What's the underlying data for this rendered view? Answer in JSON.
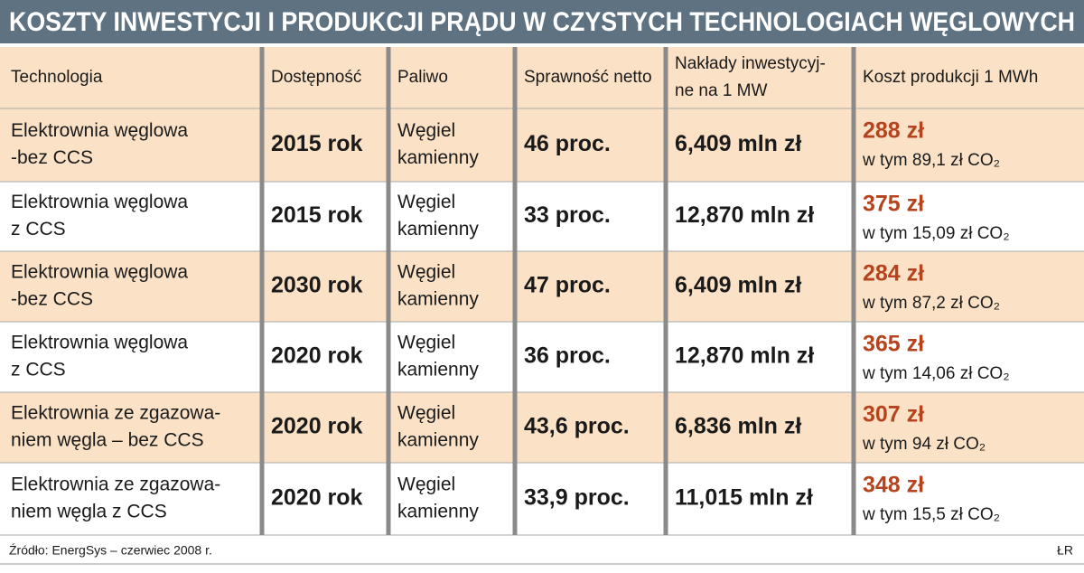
{
  "title": "KOSZTY INWESTYCJI I PRODUKCJI PRĄDU W CZYSTYCH TECHNOLOGIACH WĘGLOWYCH",
  "table": {
    "header": [
      "Technologia",
      "Dostępność",
      "Paliwo",
      "Sprawność netto",
      [
        "Nakłady inwestycyj-",
        "ne na 1 MW"
      ],
      "Koszt produkcji 1 MWh"
    ],
    "rows": [
      [
        [
          "Elektrownia węglowa",
          "-bez CCS"
        ],
        "2015 rok",
        [
          "Węgiel",
          "kamienny"
        ],
        "46 proc.",
        "6,409 mln zł",
        {
          "cost": "288 zł",
          "detail": "w tym 89,1 zł CO₂"
        }
      ],
      [
        [
          "Elektrownia węglowa",
          "z CCS"
        ],
        "2015 rok",
        [
          "Węgiel",
          "kamienny"
        ],
        "33 proc.",
        "12,870 mln zł",
        {
          "cost": "375 zł",
          "detail": "w tym 15,09 zł CO₂"
        }
      ],
      [
        [
          "Elektrownia węglowa",
          "-bez CCS"
        ],
        "2030 rok",
        [
          "Węgiel",
          "kamienny"
        ],
        "47 proc.",
        "6,409 mln zł",
        {
          "cost": "284 zł",
          "detail": "w tym 87,2 zł CO₂"
        }
      ],
      [
        [
          "Elektrownia węglowa",
          "z CCS"
        ],
        "2020 rok",
        [
          "Węgiel",
          "kamienny"
        ],
        "36 proc.",
        "12,870 mln zł",
        {
          "cost": "365 zł",
          "detail": "w tym 14,06 zł CO₂"
        }
      ],
      [
        [
          "Elektrownia ze zgazowa-",
          "niem węgla – bez CCS"
        ],
        "2020 rok",
        [
          "Węgiel",
          "kamienny"
        ],
        "43,6 proc.",
        "6,836 mln zł",
        {
          "cost": "307 zł",
          "detail": "w tym 94 zł CO₂"
        }
      ],
      [
        [
          "Elektrownia ze zgazowa-",
          "niem węgla z CCS"
        ],
        "2020 rok",
        [
          "Węgiel",
          "kamienny"
        ],
        "33,9 proc.",
        "11,015 mln zł",
        {
          "cost": "348 zł",
          "detail": "w tym 15,5 zł CO₂"
        }
      ]
    ]
  },
  "source": "Źródło: EnergSys – czerwiec 2008 r.",
  "credit": "ŁR"
}
